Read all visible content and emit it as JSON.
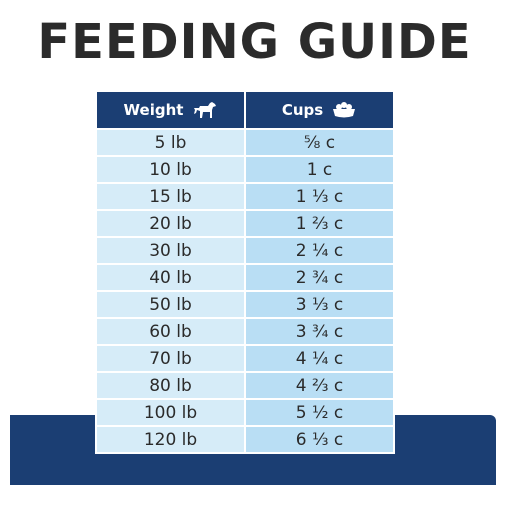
{
  "title": "FEEDING GUIDE",
  "table": {
    "headers": {
      "weight": "Weight",
      "cups": "Cups"
    },
    "rows": [
      {
        "weight": "5 lb",
        "cups": "⅝ c"
      },
      {
        "weight": "10 lb",
        "cups": "1 c"
      },
      {
        "weight": "15 lb",
        "cups": "1 ⅓ c"
      },
      {
        "weight": "20 lb",
        "cups": "1 ⅔ c"
      },
      {
        "weight": "30 lb",
        "cups": "2 ¼ c"
      },
      {
        "weight": "40 lb",
        "cups": "2 ¾ c"
      },
      {
        "weight": "50 lb",
        "cups": "3 ⅓ c"
      },
      {
        "weight": "60 lb",
        "cups": "3 ¾ c"
      },
      {
        "weight": "70 lb",
        "cups": "4 ¼ c"
      },
      {
        "weight": "80 lb",
        "cups": "4 ⅔ c"
      },
      {
        "weight": "100 lb",
        "cups": "5 ½ c"
      },
      {
        "weight": "120 lb",
        "cups": "6 ⅓ c"
      }
    ]
  },
  "icons": {
    "weight": "dog-icon",
    "cups": "food-bowl-icon"
  },
  "colors": {
    "header": "#1b3e73",
    "weight_cell": "#d6ecf8",
    "cups_cell": "#b9def4",
    "title": "#2b2b2b"
  }
}
